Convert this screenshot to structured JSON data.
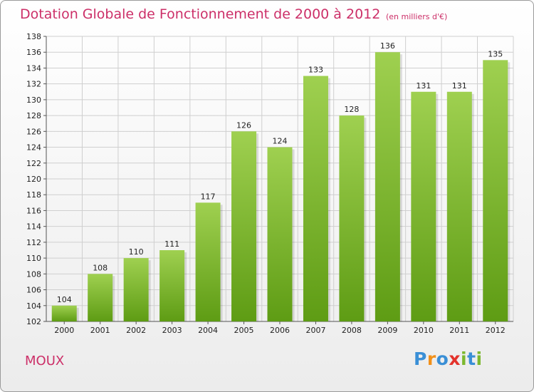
{
  "header": {
    "title": "Dotation Globale de Fonctionnement de 2000 à 2012",
    "subtitle": "(en milliers d'€)"
  },
  "commune": "MOUX",
  "logo": {
    "text": "Proxiti",
    "letters": [
      {
        "char": "P",
        "color": "#3a8fd6"
      },
      {
        "char": "r",
        "color": "#f29019"
      },
      {
        "char": "o",
        "color": "#3a8fd6"
      },
      {
        "char": "x",
        "color": "#e3322b"
      },
      {
        "char": "i",
        "color": "#7cb82f"
      },
      {
        "char": "t",
        "color": "#3a8fd6"
      },
      {
        "char": "i",
        "color": "#7cb82f"
      }
    ]
  },
  "colors": {
    "title": "#cc2f68",
    "bar_light": "#9fd050",
    "bar_dark": "#5e9c14",
    "grid": "#cfcfcf"
  },
  "chart_data": {
    "type": "bar",
    "title": "Dotation Globale de Fonctionnement de 2000 à 2012",
    "subtitle": "(en milliers d'€)",
    "categories": [
      "2000",
      "2001",
      "2002",
      "2003",
      "2004",
      "2005",
      "2006",
      "2007",
      "2008",
      "2009",
      "2010",
      "2011",
      "2012"
    ],
    "values": [
      104,
      108,
      110,
      111,
      117,
      126,
      124,
      133,
      128,
      136,
      131,
      131,
      135
    ],
    "ylim": [
      102,
      138
    ],
    "yticks": [
      102,
      104,
      106,
      108,
      110,
      112,
      114,
      116,
      118,
      120,
      122,
      124,
      126,
      128,
      130,
      132,
      134,
      136,
      138
    ],
    "grid": true,
    "legend": "none"
  }
}
